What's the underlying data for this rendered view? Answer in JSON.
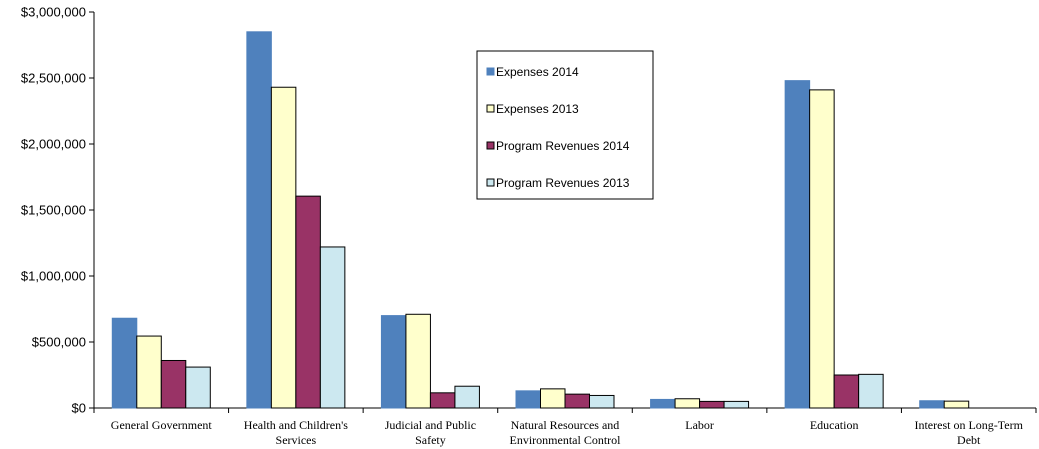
{
  "chart_data": {
    "type": "bar",
    "categories": [
      [
        "General Government"
      ],
      [
        "Health and Children's",
        "Services"
      ],
      [
        "Judicial and Public",
        "Safety"
      ],
      [
        "Natural Resources and",
        "Environmental Control"
      ],
      [
        "Labor"
      ],
      [
        "Education"
      ],
      [
        "Interest on Long-Term",
        "Debt"
      ]
    ],
    "series": [
      {
        "name": "Expenses 2014",
        "color": "#4f81bd",
        "values": [
          680000,
          2850000,
          700000,
          130000,
          65000,
          2480000,
          55000
        ]
      },
      {
        "name": "Expenses 2013",
        "color": "#ffffcc",
        "values": [
          545000,
          2430000,
          710000,
          145000,
          70000,
          2410000,
          52000
        ]
      },
      {
        "name": "Program Revenues 2014",
        "color": "#993366",
        "values": [
          360000,
          1605000,
          115000,
          105000,
          50000,
          250000,
          0
        ]
      },
      {
        "name": "Program Revenues 2013",
        "color": "#cce8f0",
        "values": [
          310000,
          1220000,
          165000,
          95000,
          50000,
          255000,
          0
        ]
      }
    ],
    "ylim": [
      0,
      3000000
    ],
    "yticks": [
      0,
      500000,
      1000000,
      1500000,
      2000000,
      2500000,
      3000000
    ],
    "ytick_labels": [
      "$0",
      "$500,000",
      "$1,000,000",
      "$1,500,000",
      "$2,000,000",
      "$2,500,000",
      "$3,000,000"
    ],
    "grid": false,
    "legend_position": "top-center"
  }
}
